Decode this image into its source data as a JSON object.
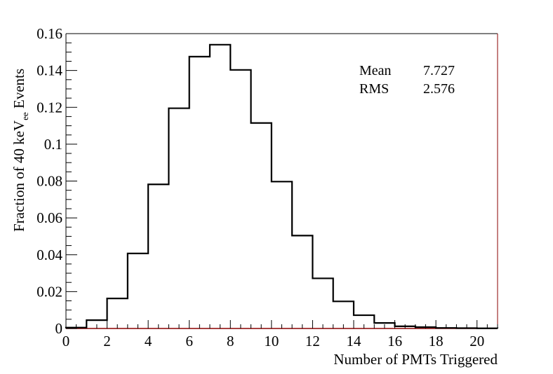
{
  "chart_data": {
    "type": "bar",
    "histogram": true,
    "bin_edges": [
      0,
      1,
      2,
      3,
      4,
      5,
      6,
      7,
      8,
      9,
      10,
      11,
      12,
      13,
      14,
      15,
      16,
      17,
      18,
      19,
      20,
      21
    ],
    "values": [
      0.0005,
      0.0045,
      0.0163,
      0.0407,
      0.0782,
      0.1195,
      0.1475,
      0.154,
      0.1403,
      0.1115,
      0.0797,
      0.0504,
      0.0272,
      0.0147,
      0.0072,
      0.003,
      0.0012,
      0.0007,
      0.0003,
      0.0002,
      0.0001
    ],
    "xlim": [
      0,
      21
    ],
    "ylim": [
      0,
      0.16
    ],
    "x_ticks": [
      0,
      2,
      4,
      6,
      8,
      10,
      12,
      14,
      16,
      18,
      20
    ],
    "y_ticks": [
      0,
      0.02,
      0.04,
      0.06,
      0.08,
      0.1,
      0.12,
      0.14,
      0.16
    ],
    "x_tick_labels": [
      "0",
      "2",
      "4",
      "6",
      "8",
      "10",
      "12",
      "14",
      "16",
      "18",
      "20"
    ],
    "y_tick_labels": [
      "0",
      "0.02",
      "0.04",
      "0.06",
      "0.08",
      "0.1",
      "0.12",
      "0.14",
      "0.16"
    ],
    "xlabel": "Number of PMTs Triggered",
    "ylabel": {
      "prefix": "Fraction of 40 keV",
      "subscript": "ee",
      "suffix": " Events"
    },
    "stats": [
      {
        "label": "Mean",
        "value": "7.727"
      },
      {
        "label": "RMS",
        "value": "2.576"
      }
    ],
    "grid": false,
    "line_color": "#000000",
    "frame_right_color": "#8b0000",
    "frame_bottom_color": "#8b0000"
  }
}
